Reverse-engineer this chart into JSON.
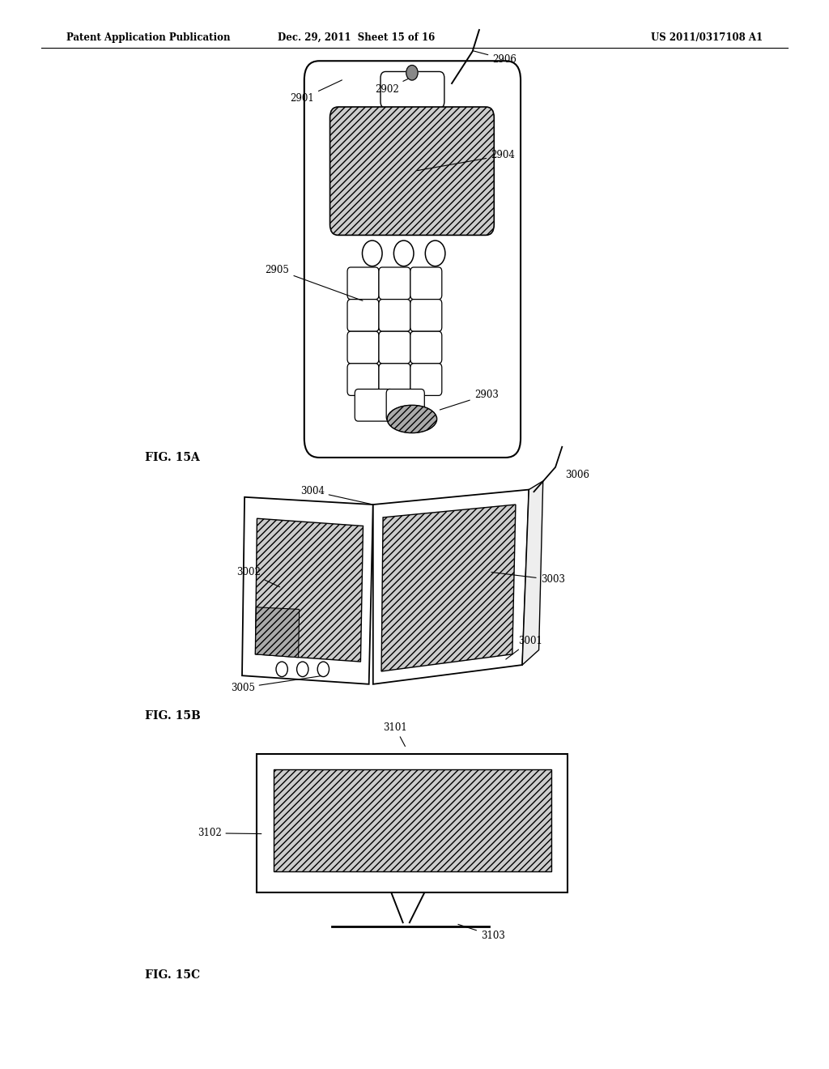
{
  "background_color": "#ffffff",
  "header_left": "Patent Application Publication",
  "header_middle": "Dec. 29, 2011  Sheet 15 of 16",
  "header_right": "US 2011/0317108 A1",
  "fig15a_label": "FIG. 15A",
  "fig15b_label": "FIG. 15B",
  "fig15c_label": "FIG. 15C"
}
